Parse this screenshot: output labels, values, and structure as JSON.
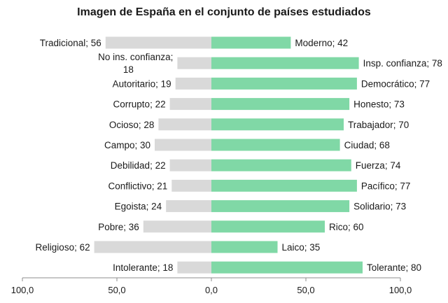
{
  "chart_data": {
    "type": "bar",
    "title": "Imagen de España en el conjunto de países estudiados",
    "xlim": [
      -100,
      100
    ],
    "x_tick_values": [
      -100,
      -50,
      0,
      50,
      100
    ],
    "x_tick_labels": [
      "100,0",
      "50,0",
      "0,0",
      "50,0",
      "100,0"
    ],
    "colors": {
      "left": "#d9d9d9",
      "right": "#80d8a6"
    },
    "pairs": [
      {
        "left_label": "Tradicional",
        "left_value": 56,
        "right_label": "Moderno",
        "right_value": 42
      },
      {
        "left_label": "No ins. confianza",
        "left_value": 18,
        "right_label": "Insp. confianza",
        "right_value": 78
      },
      {
        "left_label": "Autoritario",
        "left_value": 19,
        "right_label": "Democrático",
        "right_value": 77
      },
      {
        "left_label": "Corrupto",
        "left_value": 22,
        "right_label": "Honesto",
        "right_value": 73
      },
      {
        "left_label": "Ocioso",
        "left_value": 28,
        "right_label": "Trabajador",
        "right_value": 70
      },
      {
        "left_label": "Campo",
        "left_value": 30,
        "right_label": "Ciudad",
        "right_value": 68
      },
      {
        "left_label": "Debilidad",
        "left_value": 22,
        "right_label": "Fuerza",
        "right_value": 74
      },
      {
        "left_label": "Conflictivo",
        "left_value": 21,
        "right_label": "Pacífico",
        "right_value": 77
      },
      {
        "left_label": "Egoista",
        "left_value": 24,
        "right_label": "Solidario",
        "right_value": 73
      },
      {
        "left_label": "Pobre",
        "left_value": 36,
        "right_label": "Rico",
        "right_value": 60
      },
      {
        "left_label": "Religioso",
        "left_value": 62,
        "right_label": "Laico",
        "right_value": 35
      },
      {
        "left_label": "Intolerante",
        "left_value": 18,
        "right_label": "Tolerante",
        "right_value": 80
      }
    ]
  }
}
